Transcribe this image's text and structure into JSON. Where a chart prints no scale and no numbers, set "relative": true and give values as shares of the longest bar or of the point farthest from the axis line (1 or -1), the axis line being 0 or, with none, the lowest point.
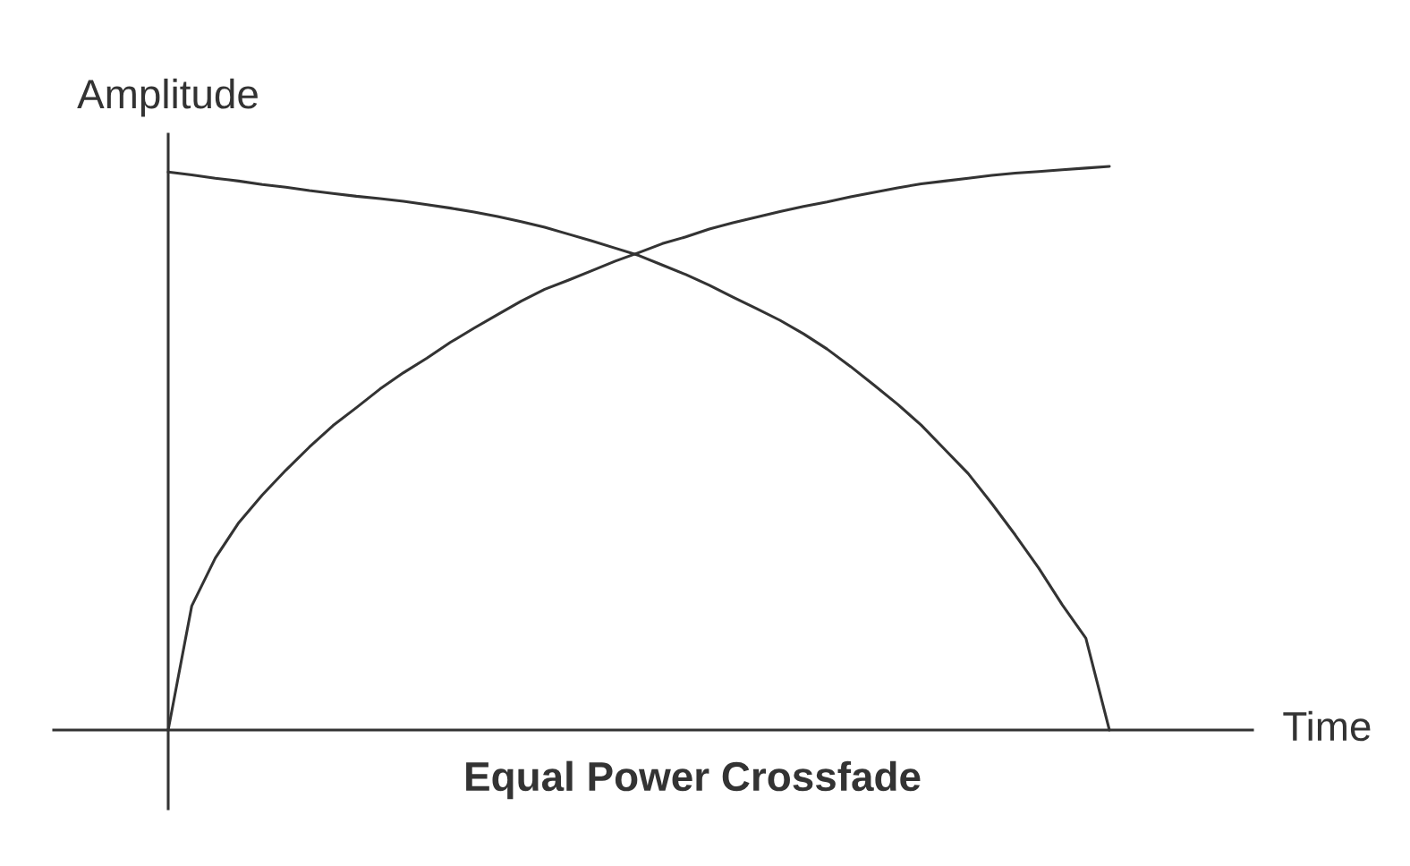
{
  "chart_data": {
    "type": "line",
    "title": "Equal Power Crossfade",
    "xlabel": "Time",
    "ylabel": "Amplitude",
    "relative": true,
    "tick_labels": false,
    "categories": [
      null,
      null,
      null,
      null,
      null,
      null,
      null,
      null,
      null,
      null,
      null,
      null,
      null,
      null,
      null,
      null,
      null,
      null,
      null,
      null,
      null,
      null,
      null,
      null,
      null,
      null,
      null,
      null,
      null,
      null,
      null,
      null,
      null,
      null,
      null,
      null,
      null,
      null,
      null,
      null,
      null
    ],
    "series": [
      {
        "color": "#333333",
        "values": [
          0.99,
          0.985,
          0.979,
          0.974,
          0.968,
          0.963,
          0.957,
          0.952,
          0.947,
          0.943,
          0.938,
          0.932,
          0.926,
          0.919,
          0.911,
          0.902,
          0.892,
          0.88,
          0.868,
          0.855,
          0.842,
          0.825,
          0.808,
          0.789,
          0.768,
          0.748,
          0.727,
          0.703,
          0.676,
          0.645,
          0.612,
          0.578,
          0.541,
          0.498,
          0.455,
          0.402,
          0.346,
          0.287,
          0.222,
          0.163,
          0
        ]
      },
      {
        "color": "#333333",
        "values": [
          0,
          0.22,
          0.305,
          0.368,
          0.417,
          0.461,
          0.502,
          0.54,
          0.572,
          0.605,
          0.634,
          0.66,
          0.688,
          0.713,
          0.737,
          0.761,
          0.782,
          0.798,
          0.815,
          0.832,
          0.847,
          0.863,
          0.875,
          0.889,
          0.9,
          0.91,
          0.92,
          0.929,
          0.937,
          0.946,
          0.954,
          0.962,
          0.969,
          0.974,
          0.979,
          0.984,
          0.988,
          0.991,
          0.994,
          0.997,
          1
        ]
      }
    ]
  }
}
